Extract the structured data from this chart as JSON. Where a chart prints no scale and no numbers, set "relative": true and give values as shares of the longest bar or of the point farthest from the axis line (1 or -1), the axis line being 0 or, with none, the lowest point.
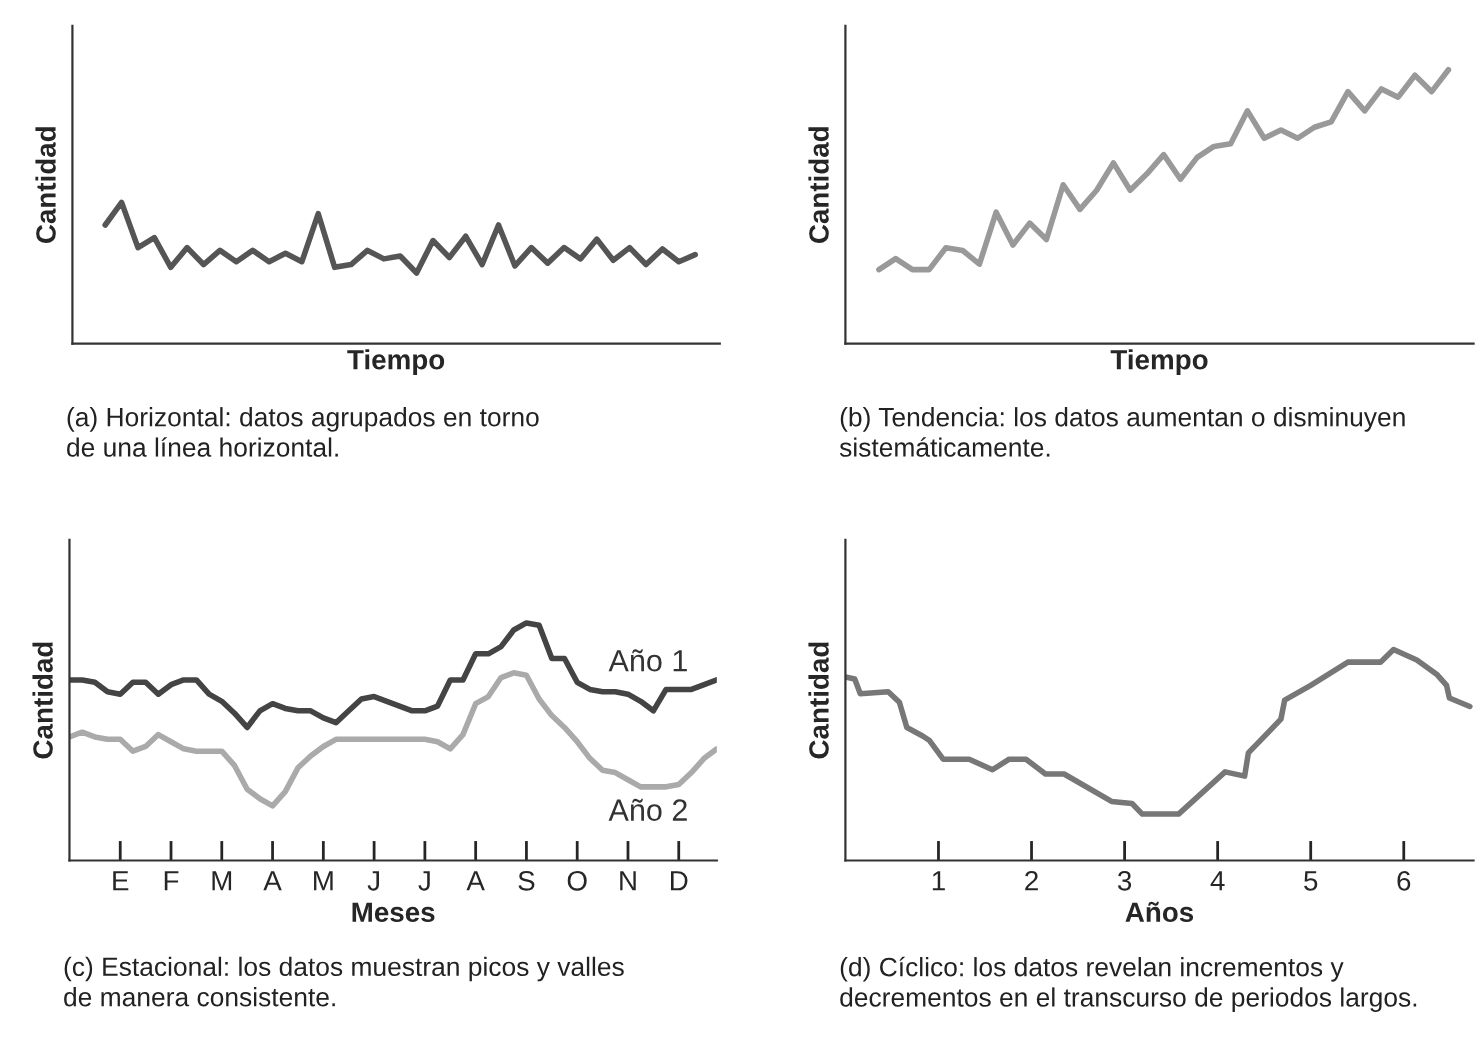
{
  "chart_data": [
    {
      "type": "line",
      "relative": true,
      "xlabel": "Tiempo",
      "ylabel": "Cantidad",
      "tick_labels": false,
      "annotations": [
        "(a) Horizontal: datos agrupados en torno\nde una línea horizontal."
      ],
      "categories": [
        null,
        null,
        null,
        null,
        null,
        null,
        null,
        null,
        null,
        null,
        null,
        null,
        null,
        null,
        null,
        null,
        null,
        null,
        null,
        null,
        null,
        null,
        null,
        null,
        null,
        null,
        null,
        null,
        null,
        null,
        null,
        null,
        null,
        null,
        null,
        null,
        null
      ],
      "series": [
        {
          "color": "#555555",
          "values": [
            0.84,
            1,
            0.68,
            0.75,
            0.54,
            0.68,
            0.56,
            0.66,
            0.58,
            0.66,
            0.58,
            0.64,
            0.58,
            0.92,
            0.54,
            0.56,
            0.66,
            0.6,
            0.62,
            0.5,
            0.73,
            0.61,
            0.76,
            0.56,
            0.84,
            0.55,
            0.68,
            0.57,
            0.68,
            0.6,
            0.74,
            0.59,
            0.68,
            0.56,
            0.67,
            0.58,
            0.63
          ]
        }
      ]
    },
    {
      "type": "line",
      "relative": true,
      "xlabel": "Tiempo",
      "ylabel": "Cantidad",
      "tick_labels": false,
      "annotations": [
        "(b) Tendencia: los datos aumentan o disminuyen\nsistemáticamente."
      ],
      "categories": [
        null,
        null,
        null,
        null,
        null,
        null,
        null,
        null,
        null,
        null,
        null,
        null,
        null,
        null,
        null,
        null,
        null,
        null,
        null,
        null,
        null,
        null,
        null,
        null,
        null,
        null,
        null,
        null,
        null,
        null,
        null,
        null,
        null,
        null,
        null
      ],
      "series": [
        {
          "color": "#999999",
          "values": [
            0.27,
            0.31,
            0.27,
            0.27,
            0.35,
            0.34,
            0.29,
            0.48,
            0.36,
            0.44,
            0.38,
            0.58,
            0.49,
            0.56,
            0.66,
            0.56,
            0.62,
            0.69,
            0.6,
            0.68,
            0.72,
            0.73,
            0.85,
            0.75,
            0.78,
            0.75,
            0.79,
            0.81,
            0.92,
            0.85,
            0.93,
            0.9,
            0.98,
            0.92,
            1
          ]
        }
      ]
    },
    {
      "type": "line",
      "relative": true,
      "xlabel": "Meses",
      "ylabel": "Cantidad",
      "tick_labels": "x",
      "annotations": [
        "(c) Estacional: los datos muestran picos y valles\nde manera consistente."
      ],
      "categories": [
        null,
        null,
        null,
        null,
        "E",
        null,
        null,
        null,
        "F",
        null,
        null,
        null,
        "M",
        null,
        null,
        null,
        "A",
        null,
        null,
        null,
        "M",
        null,
        null,
        null,
        "J",
        null,
        null,
        null,
        "J",
        null,
        null,
        null,
        "A",
        null,
        null,
        null,
        "S",
        null,
        null,
        null,
        "O",
        null,
        null,
        null,
        "N",
        null,
        null,
        null,
        "D",
        null,
        null,
        null
      ],
      "series": [
        {
          "name": "Año 1",
          "color": "#444444",
          "values": [
            0.76,
            0.76,
            0.75,
            0.71,
            0.7,
            0.75,
            0.75,
            0.7,
            0.74,
            0.76,
            0.76,
            0.7,
            0.67,
            0.62,
            0.56,
            0.63,
            0.66,
            0.64,
            0.63,
            0.63,
            0.6,
            0.58,
            0.63,
            0.68,
            0.69,
            0.67,
            0.65,
            0.63,
            0.63,
            0.65,
            0.76,
            0.76,
            0.87,
            0.87,
            0.9,
            0.97,
            1,
            0.99,
            0.85,
            0.85,
            0.75,
            0.72,
            0.71,
            0.71,
            0.7,
            0.67,
            0.63,
            0.72,
            0.72,
            0.72,
            0.74,
            0.76
          ]
        },
        {
          "name": "Año 2",
          "color": "#aaaaaa",
          "values": [
            0.52,
            0.54,
            0.52,
            0.51,
            0.51,
            0.46,
            0.48,
            0.53,
            0.5,
            0.47,
            0.46,
            0.46,
            0.46,
            0.4,
            0.3,
            0.26,
            0.23,
            0.29,
            0.39,
            0.44,
            0.48,
            0.51,
            0.51,
            0.51,
            0.51,
            0.51,
            0.51,
            0.51,
            0.51,
            0.5,
            0.47,
            0.53,
            0.66,
            0.69,
            0.77,
            0.79,
            0.78,
            0.68,
            0.61,
            0.56,
            0.5,
            0.43,
            0.38,
            0.37,
            0.34,
            0.31,
            0.31,
            0.31,
            0.32,
            0.37,
            0.43,
            0.47
          ]
        }
      ]
    },
    {
      "type": "line",
      "relative": true,
      "xlabel": "Años",
      "ylabel": "Cantidad",
      "tick_labels": "x",
      "annotations": [
        "(d) Cíclico: los datos revelan incrementos y\ndecrementos en el transcurso de periodos largos."
      ],
      "xlim": [
        0,
        6.75
      ],
      "xticks": [
        1,
        2,
        3,
        4,
        5,
        6
      ],
      "series": [
        {
          "color": "#777777",
          "x": [
            0,
            0.1,
            0.16,
            0.46,
            0.58,
            0.66,
            0.83,
            0.9,
            1.05,
            1.33,
            1.58,
            1.76,
            1.94,
            2.15,
            2.35,
            2.86,
            3.08,
            3.19,
            3.58,
            4.08,
            4.29,
            4.33,
            4.68,
            4.72,
            5,
            5.4,
            5.75,
            5.89,
            6.14,
            6.36,
            6.46,
            6.49,
            6.71
          ],
          "values": [
            0.87,
            0.86,
            0.79,
            0.8,
            0.75,
            0.63,
            0.59,
            0.57,
            0.48,
            0.48,
            0.43,
            0.48,
            0.48,
            0.41,
            0.41,
            0.28,
            0.27,
            0.22,
            0.22,
            0.42,
            0.4,
            0.51,
            0.67,
            0.76,
            0.83,
            0.94,
            0.94,
            1,
            0.95,
            0.88,
            0.83,
            0.77,
            0.73
          ]
        }
      ]
    }
  ]
}
